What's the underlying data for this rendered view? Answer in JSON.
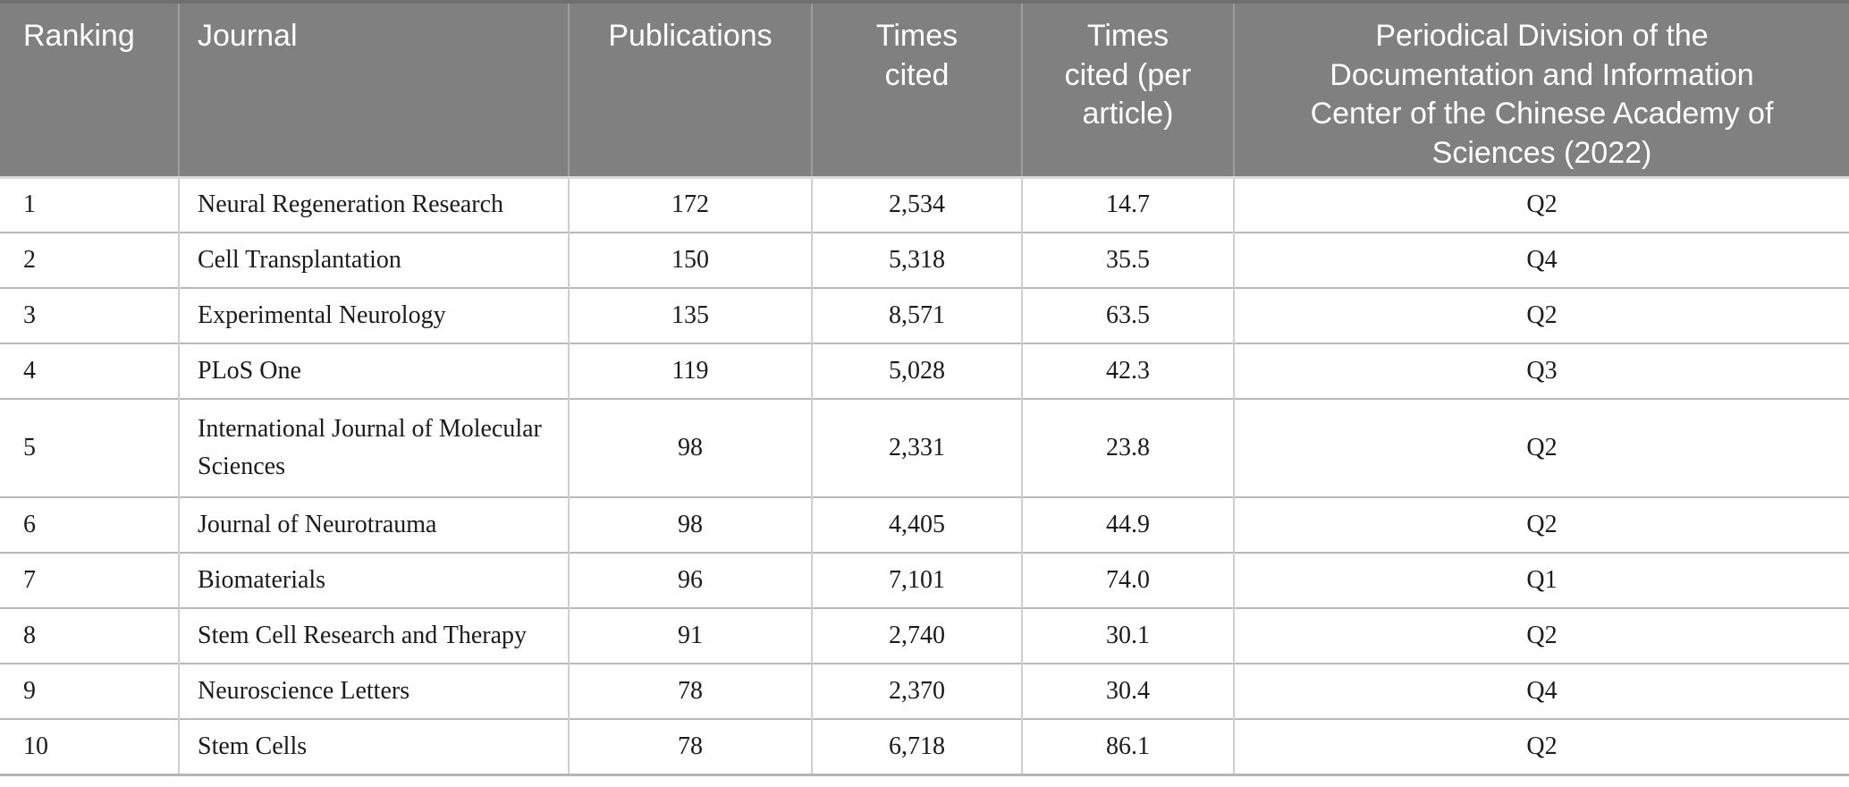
{
  "table": {
    "columns": [
      {
        "key": "ranking",
        "label": "Ranking"
      },
      {
        "key": "journal",
        "label": "Journal"
      },
      {
        "key": "publications",
        "label": "Publications"
      },
      {
        "key": "times_cited",
        "label": "Times\ncited"
      },
      {
        "key": "times_cited_per_article",
        "label": "Times\ncited (per\narticle)"
      },
      {
        "key": "periodical_division",
        "label": "Periodical Division of the\nDocumentation and Information\nCenter of the Chinese Academy of\nSciences (2022)"
      }
    ],
    "rows": [
      {
        "ranking": "1",
        "journal": "Neural Regeneration Research",
        "publications": "172",
        "times_cited": "2,534",
        "times_cited_per_article": "14.7",
        "periodical_division": "Q2"
      },
      {
        "ranking": "2",
        "journal": "Cell Transplantation",
        "publications": "150",
        "times_cited": "5,318",
        "times_cited_per_article": "35.5",
        "periodical_division": "Q4"
      },
      {
        "ranking": "3",
        "journal": "Experimental Neurology",
        "publications": "135",
        "times_cited": "8,571",
        "times_cited_per_article": "63.5",
        "periodical_division": "Q2"
      },
      {
        "ranking": "4",
        "journal": "PLoS One",
        "publications": "119",
        "times_cited": "5,028",
        "times_cited_per_article": "42.3",
        "periodical_division": "Q3"
      },
      {
        "ranking": "5",
        "journal": "International Journal of Molecular Sciences",
        "publications": "98",
        "times_cited": "2,331",
        "times_cited_per_article": "23.8",
        "periodical_division": "Q2"
      },
      {
        "ranking": "6",
        "journal": "Journal of Neurotrauma",
        "publications": "98",
        "times_cited": "4,405",
        "times_cited_per_article": "44.9",
        "periodical_division": "Q2"
      },
      {
        "ranking": "7",
        "journal": "Biomaterials",
        "publications": "96",
        "times_cited": "7,101",
        "times_cited_per_article": "74.0",
        "periodical_division": "Q1"
      },
      {
        "ranking": "8",
        "journal": "Stem Cell Research and Therapy",
        "publications": "91",
        "times_cited": "2,740",
        "times_cited_per_article": "30.1",
        "periodical_division": "Q2"
      },
      {
        "ranking": "9",
        "journal": "Neuroscience Letters",
        "publications": "78",
        "times_cited": "2,370",
        "times_cited_per_article": "30.4",
        "periodical_division": "Q4"
      },
      {
        "ranking": "10",
        "journal": "Stem Cells",
        "publications": "78",
        "times_cited": "6,718",
        "times_cited_per_article": "86.1",
        "periodical_division": "Q2"
      }
    ]
  },
  "colors": {
    "header_background": "#808080",
    "header_text": "#ffffff",
    "row_separator": "#b9b9b9",
    "column_separator": "#cfcfcf",
    "body_text": "#1b1b1b"
  }
}
